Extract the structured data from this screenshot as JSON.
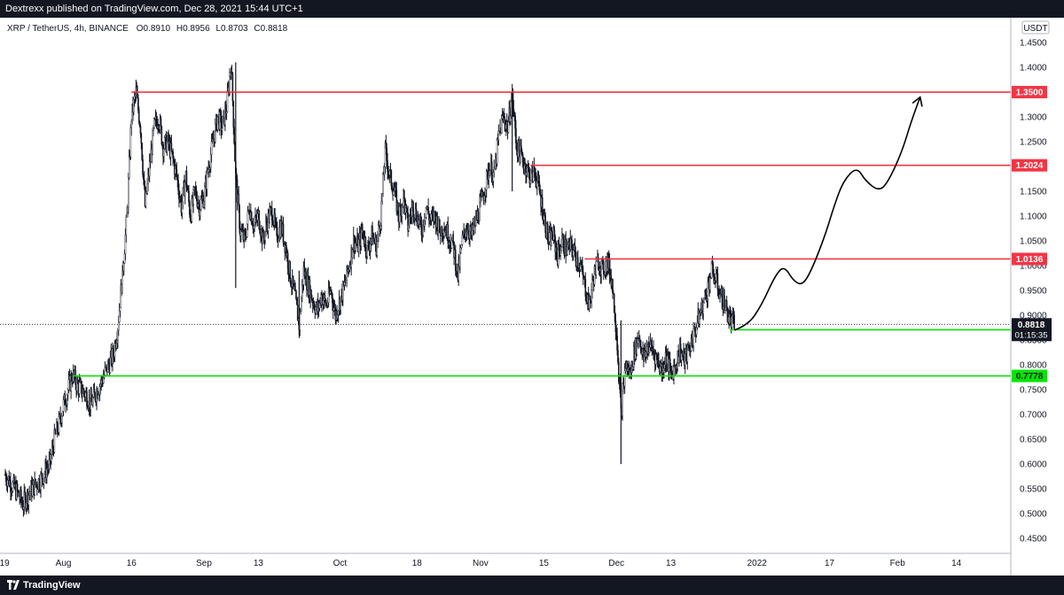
{
  "header": {
    "published_text": "Dextrexx published on TradingView.com, Dec 28, 2021 15:44 UTC+1"
  },
  "footer": {
    "brand": "TradingView"
  },
  "chart_data": {
    "type": "candlestick",
    "legend": {
      "symbol_text": "XRP / TetherUS, 4h, BINANCE",
      "open": "O0.8910",
      "high": "H0.8956",
      "low": "L0.8703",
      "close": "C0.8818"
    },
    "currency_label": "USDT",
    "y_ticks": [
      "1.4500",
      "1.4000",
      "1.3500",
      "1.3000",
      "1.2500",
      "1.2000",
      "1.1500",
      "1.1000",
      "1.0500",
      "1.0000",
      "0.9500",
      "0.9000",
      "0.8500",
      "0.8000",
      "0.7500",
      "0.7000",
      "0.6500",
      "0.6000",
      "0.5500",
      "0.5000",
      "0.4500"
    ],
    "y_range": [
      0.42,
      1.5
    ],
    "x_ticks": [
      "19",
      "Aug",
      "16",
      "Sep",
      "13",
      "Oct",
      "18",
      "Nov",
      "15",
      "Dec",
      "13",
      "2022",
      "17",
      "Feb",
      "14"
    ],
    "x_tick_days": [
      0,
      13,
      28,
      44,
      56,
      74,
      91,
      105,
      119,
      135,
      147,
      166,
      182,
      197,
      210
    ],
    "x_range": [
      -1,
      222
    ],
    "last_price": "0.8818",
    "countdown": "01:15:35",
    "last_price_value": 0.8818,
    "levels": [
      {
        "label": "1.3500",
        "value": 1.35,
        "color": "#f23645",
        "from_day": 28
      },
      {
        "label": "1.2024",
        "value": 1.2024,
        "color": "#f23645",
        "from_day": 116
      },
      {
        "label": "1.0136",
        "value": 1.0136,
        "color": "#f23645",
        "from_day": 128
      },
      {
        "label": "0.8709",
        "value": 0.8709,
        "color": "#00e600",
        "from_day": 160
      },
      {
        "label": "0.7778",
        "value": 0.7778,
        "color": "#00e600",
        "from_day": 15
      }
    ],
    "price_path": [
      [
        0,
        0.58
      ],
      [
        3,
        0.54
      ],
      [
        4,
        0.52
      ],
      [
        6,
        0.55
      ],
      [
        8,
        0.57
      ],
      [
        10,
        0.6
      ],
      [
        11,
        0.65
      ],
      [
        12,
        0.68
      ],
      [
        13,
        0.72
      ],
      [
        14,
        0.75
      ],
      [
        15,
        0.78
      ],
      [
        16,
        0.76
      ],
      [
        18,
        0.74
      ],
      [
        19,
        0.72
      ],
      [
        20,
        0.74
      ],
      [
        22,
        0.78
      ],
      [
        24,
        0.82
      ],
      [
        25,
        0.88
      ],
      [
        26,
        0.98
      ],
      [
        27,
        1.1
      ],
      [
        28,
        1.3
      ],
      [
        29,
        1.35
      ],
      [
        30,
        1.28
      ],
      [
        31,
        1.12
      ],
      [
        32,
        1.2
      ],
      [
        33,
        1.28
      ],
      [
        34,
        1.3
      ],
      [
        35,
        1.24
      ],
      [
        36,
        1.25
      ],
      [
        37,
        1.22
      ],
      [
        38,
        1.18
      ],
      [
        39,
        1.12
      ],
      [
        40,
        1.18
      ],
      [
        41,
        1.1
      ],
      [
        42,
        1.15
      ],
      [
        43,
        1.12
      ],
      [
        44,
        1.14
      ],
      [
        45,
        1.2
      ],
      [
        46,
        1.25
      ],
      [
        47,
        1.3
      ],
      [
        48,
        1.28
      ],
      [
        49,
        1.32
      ],
      [
        50,
        1.41
      ],
      [
        51,
        1.18
      ],
      [
        52,
        1.07
      ],
      [
        53,
        1.05
      ],
      [
        54,
        1.12
      ],
      [
        55,
        1.08
      ],
      [
        56,
        1.1
      ],
      [
        57,
        1.05
      ],
      [
        58,
        1.09
      ],
      [
        59,
        1.11
      ],
      [
        60,
        1.06
      ],
      [
        61,
        1.08
      ],
      [
        62,
        1.04
      ],
      [
        63,
        0.98
      ],
      [
        64,
        0.94
      ],
      [
        65,
        0.88
      ],
      [
        66,
        0.99
      ],
      [
        67,
        0.96
      ],
      [
        68,
        0.93
      ],
      [
        69,
        0.91
      ],
      [
        70,
        0.94
      ],
      [
        71,
        0.92
      ],
      [
        72,
        0.95
      ],
      [
        73,
        0.9
      ],
      [
        74,
        0.93
      ],
      [
        75,
        0.96
      ],
      [
        76,
        1.0
      ],
      [
        77,
        1.05
      ],
      [
        78,
        1.04
      ],
      [
        79,
        1.07
      ],
      [
        80,
        1.03
      ],
      [
        81,
        1.06
      ],
      [
        82,
        1.04
      ],
      [
        83,
        1.1
      ],
      [
        84,
        1.23
      ],
      [
        85,
        1.18
      ],
      [
        86,
        1.15
      ],
      [
        87,
        1.1
      ],
      [
        88,
        1.14
      ],
      [
        89,
        1.08
      ],
      [
        90,
        1.12
      ],
      [
        91,
        1.1
      ],
      [
        92,
        1.07
      ],
      [
        93,
        1.12
      ],
      [
        94,
        1.09
      ],
      [
        95,
        1.1
      ],
      [
        96,
        1.07
      ],
      [
        97,
        1.08
      ],
      [
        98,
        1.06
      ],
      [
        99,
        1.04
      ],
      [
        100,
        0.98
      ],
      [
        101,
        1.05
      ],
      [
        102,
        1.08
      ],
      [
        103,
        1.06
      ],
      [
        104,
        1.09
      ],
      [
        105,
        1.12
      ],
      [
        106,
        1.16
      ],
      [
        107,
        1.2
      ],
      [
        108,
        1.18
      ],
      [
        109,
        1.26
      ],
      [
        110,
        1.3
      ],
      [
        111,
        1.28
      ],
      [
        112,
        1.34
      ],
      [
        113,
        1.24
      ],
      [
        114,
        1.22
      ],
      [
        115,
        1.2
      ],
      [
        116,
        1.18
      ],
      [
        117,
        1.19
      ],
      [
        118,
        1.15
      ],
      [
        119,
        1.1
      ],
      [
        120,
        1.05
      ],
      [
        121,
        1.06
      ],
      [
        122,
        1.02
      ],
      [
        123,
        1.05
      ],
      [
        124,
        1.03
      ],
      [
        125,
        1.04
      ],
      [
        126,
        1.02
      ],
      [
        127,
        1.0
      ],
      [
        128,
        0.96
      ],
      [
        129,
        0.92
      ],
      [
        130,
        0.98
      ],
      [
        131,
        1.01
      ],
      [
        132,
        0.99
      ],
      [
        133,
        1.01
      ],
      [
        134,
        0.97
      ],
      [
        135,
        0.87
      ],
      [
        136,
        0.7
      ],
      [
        137,
        0.8
      ],
      [
        138,
        0.78
      ],
      [
        139,
        0.83
      ],
      [
        140,
        0.86
      ],
      [
        141,
        0.81
      ],
      [
        142,
        0.84
      ],
      [
        143,
        0.83
      ],
      [
        144,
        0.81
      ],
      [
        145,
        0.79
      ],
      [
        146,
        0.82
      ],
      [
        147,
        0.78
      ],
      [
        148,
        0.8
      ],
      [
        149,
        0.83
      ],
      [
        150,
        0.81
      ],
      [
        151,
        0.83
      ],
      [
        152,
        0.86
      ],
      [
        153,
        0.89
      ],
      [
        154,
        0.92
      ],
      [
        155,
        0.95
      ],
      [
        156,
        0.99
      ],
      [
        157,
        0.97
      ],
      [
        158,
        0.94
      ],
      [
        159,
        0.92
      ],
      [
        160,
        0.89
      ],
      [
        161,
        0.88
      ]
    ],
    "wicks": [
      {
        "day": 51,
        "high": 1.41,
        "low": 0.955
      },
      {
        "day": 112,
        "high": 1.35,
        "low": 1.15
      },
      {
        "day": 136,
        "high": 0.89,
        "low": 0.6
      },
      {
        "day": 65,
        "high": 0.99,
        "low": 0.86
      }
    ],
    "projection": [
      [
        161,
        0.87
      ],
      [
        164,
        0.88
      ],
      [
        167,
        0.92
      ],
      [
        170,
        0.98
      ],
      [
        172,
        1.0
      ],
      [
        174,
        0.97
      ],
      [
        176,
        0.96
      ],
      [
        178,
        0.99
      ],
      [
        181,
        1.06
      ],
      [
        183,
        1.12
      ],
      [
        185,
        1.17
      ],
      [
        188,
        1.2
      ],
      [
        190,
        1.17
      ],
      [
        193,
        1.15
      ],
      [
        195,
        1.17
      ],
      [
        198,
        1.23
      ],
      [
        200,
        1.29
      ],
      [
        202,
        1.34
      ]
    ]
  }
}
